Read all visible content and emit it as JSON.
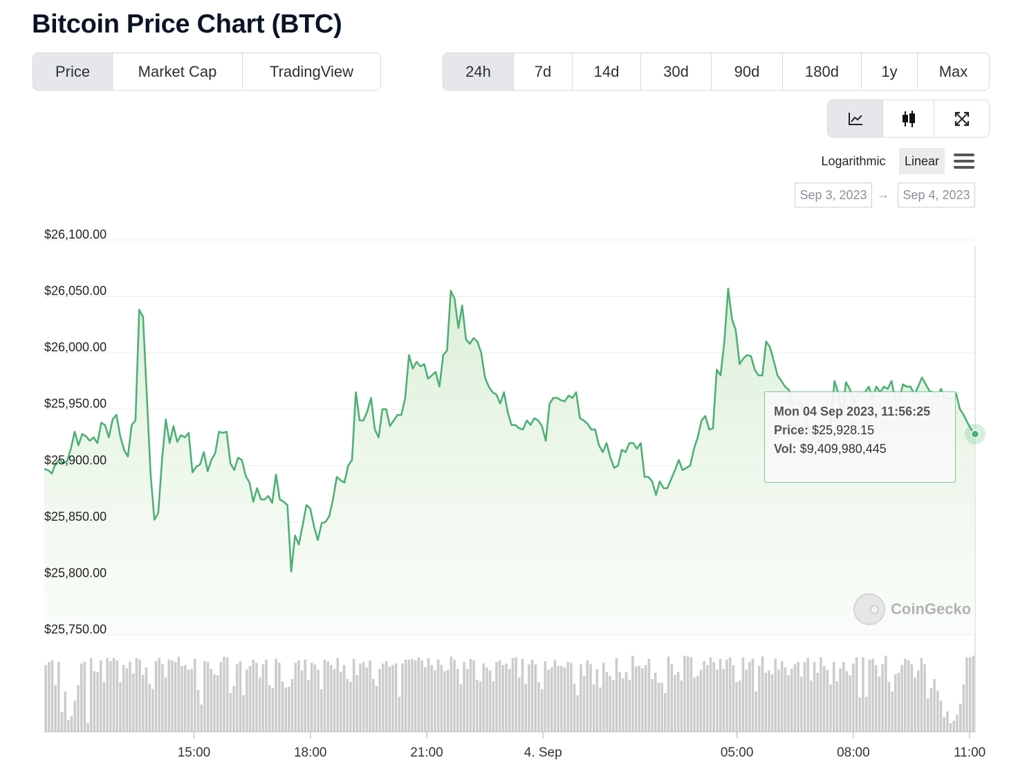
{
  "page": {
    "title": "Bitcoin Price Chart (BTC)"
  },
  "view_tabs": [
    {
      "label": "Price",
      "active": true
    },
    {
      "label": "Market Cap",
      "active": false
    },
    {
      "label": "TradingView",
      "active": false
    }
  ],
  "range_tabs": [
    {
      "label": "24h",
      "active": true
    },
    {
      "label": "7d",
      "active": false
    },
    {
      "label": "14d",
      "active": false
    },
    {
      "label": "30d",
      "active": false
    },
    {
      "label": "90d",
      "active": false
    },
    {
      "label": "180d",
      "active": false
    },
    {
      "label": "1y",
      "active": false
    },
    {
      "label": "Max",
      "active": false
    }
  ],
  "chart_type_buttons": [
    {
      "icon": "line-chart-icon",
      "active": true
    },
    {
      "icon": "candlestick-icon",
      "active": false
    },
    {
      "icon": "fullscreen-icon",
      "active": false
    }
  ],
  "scale": {
    "logarithmic": "Logarithmic",
    "linear": "Linear",
    "selected": "Linear"
  },
  "date_range": {
    "from": "Sep 3, 2023",
    "arrow": "→",
    "to": "Sep 4, 2023"
  },
  "tooltip": {
    "date": "Mon 04 Sep 2023, 11:56:25",
    "price_label": "Price:",
    "price_value": "$25,928.15",
    "vol_label": "Vol:",
    "vol_value": "$9,409,980,445"
  },
  "credit": {
    "name": "CoinGecko",
    "icon": "coingecko-logo-icon"
  },
  "colors": {
    "line": "#4cb074",
    "fill": "#e6f4e4",
    "volume": "#cccccc",
    "grid": "#ececec",
    "tooltip_border": "#7cc99a"
  },
  "chart_data": {
    "type": "area",
    "title": "",
    "xlabel": "",
    "ylabel": "",
    "ylim": [
      25750,
      26100
    ],
    "y_ticks": [
      25750,
      25800,
      25850,
      25900,
      25950,
      26000,
      26050,
      26100
    ],
    "y_tick_labels": [
      "$25,750.00",
      "$25,800.00",
      "$25,850.00",
      "$25,900.00",
      "$25,950.00",
      "$26,000.00",
      "$26,050.00",
      "$26,100.00"
    ],
    "x_range_hours": [
      -0.86,
      23.14
    ],
    "x_ticks": [
      {
        "hour": 3,
        "label": "15:00"
      },
      {
        "hour": 6,
        "label": "18:00"
      },
      {
        "hour": 9,
        "label": "21:00"
      },
      {
        "hour": 12,
        "label": "4. Sep"
      },
      {
        "hour": 17,
        "label": "05:00"
      },
      {
        "hour": 20,
        "label": "08:00"
      },
      {
        "hour": 23,
        "label": "11:00"
      }
    ],
    "grid": true,
    "legend": "none",
    "series": [
      {
        "values": [
          25897,
          25896,
          25893,
          25902,
          25905,
          25902,
          25904,
          25915,
          25930,
          25918,
          25928,
          25926,
          25922,
          25925,
          25920,
          25938,
          25936,
          25925,
          25941,
          25945,
          25926,
          25914,
          25908,
          25936,
          25940,
          26038,
          26032,
          25962,
          25892,
          25852,
          25858,
          25905,
          25941,
          25920,
          25935,
          25921,
          25927,
          25925,
          25929,
          25894,
          25899,
          25901,
          25912,
          25895,
          25905,
          25911,
          25930,
          25929,
          25930,
          25902,
          25896,
          25907,
          25905,
          25891,
          25885,
          25868,
          25880,
          25870,
          25870,
          25873,
          25867,
          25892,
          25870,
          25868,
          25865,
          25806,
          25838,
          25830,
          25847,
          25865,
          25862,
          25846,
          25834,
          25849,
          25850,
          25855,
          25870,
          25890,
          25887,
          25885,
          25900,
          25905,
          25965,
          25940,
          25940,
          25948,
          25960,
          25932,
          25925,
          25950,
          25950,
          25935,
          25940,
          25945,
          25945,
          25960,
          25998,
          25986,
          25992,
          25988,
          25990,
          25977,
          25980,
          25983,
          25970,
          25998,
          26002,
          26055,
          26048,
          26022,
          26042,
          26012,
          26008,
          26013,
          26010,
          26000,
          25978,
          25970,
          25965,
          25963,
          25955,
          25965,
          25947,
          25936,
          25936,
          25933,
          25932,
          25940,
          25936,
          25942,
          25940,
          25935,
          25922,
          25955,
          25960,
          25960,
          25958,
          25957,
          25962,
          25960,
          25965,
          25942,
          25940,
          25937,
          25932,
          25932,
          25918,
          25912,
          25920,
          25907,
          25898,
          25900,
          25914,
          25912,
          25920,
          25920,
          25915,
          25920,
          25890,
          25890,
          25886,
          25874,
          25886,
          25880,
          25880,
          25888,
          25896,
          25905,
          25896,
          25898,
          25900,
          25915,
          25925,
          25940,
          25944,
          25932,
          25933,
          25985,
          25980,
          26010,
          26057,
          26030,
          26020,
          25990,
          25995,
          25998,
          25997,
          25985,
          25980,
          25980,
          26010,
          26005,
          25993,
          25980,
          25975,
          25970,
          25967,
          25954,
          25955,
          25956,
          25950,
          25935,
          25927,
          25922,
          25920,
          25930,
          25928,
          25940,
          25975,
          25964,
          25944,
          25974,
          25968,
          25956,
          25962,
          25965,
          25965,
          25970,
          25960,
          25970,
          25965,
          25970,
          25968,
          25975,
          25958,
          25958,
          25972,
          25970,
          25970,
          25963,
          25970,
          25978,
          25972,
          25966,
          25965,
          25960,
          25968,
          25960,
          25960,
          25958,
          25964,
          25950,
          25945,
          25938,
          25932,
          25928
        ]
      }
    ],
    "volume": {
      "ylim": [
        0,
        1
      ],
      "values": [
        0.86,
        0.9,
        0.92,
        0.6,
        0.9,
        0.25,
        0.52,
        0.15,
        0.2,
        0.4,
        0.6,
        0.88,
        0.9,
        0.11,
        0.95,
        0.78,
        0.77,
        0.92,
        0.64,
        0.95,
        0.91,
        0.95,
        0.92,
        0.64,
        0.86,
        0.82,
        0.9,
        0.75,
        0.95,
        0.93,
        0.73,
        0.83,
        0.62,
        0.55,
        0.91,
        0.95,
        0.87,
        0.7,
        0.93,
        0.92,
        0.9,
        0.97,
        0.85,
        0.86,
        0.8,
        0.81,
        0.94,
        0.54,
        0.35,
        0.91,
        0.9,
        0.81,
        0.74,
        0.73,
        0.9,
        0.97,
        0.96,
        0.5,
        0.59,
        0.87,
        0.91,
        0.47,
        0.8,
        0.85,
        0.93,
        0.89,
        0.7,
        0.87,
        0.93,
        0.6,
        0.56,
        0.94,
        0.89,
        0.65,
        0.57,
        0.58,
        0.68,
        0.89,
        0.92,
        0.79,
        0.93,
        0.67,
        0.89,
        0.87,
        0.8,
        0.55,
        0.93,
        0.91,
        0.86,
        0.81,
        0.95,
        0.77,
        0.86,
        0.68,
        0.64,
        0.94,
        0.73,
        0.88,
        0.9,
        0.83,
        0.92,
        0.68,
        0.59,
        0.81,
        0.88,
        0.91,
        0.84,
        0.86,
        0.88,
        0.45,
        0.88,
        0.93,
        0.93,
        0.94,
        0.92,
        0.96,
        0.92,
        0.83,
        0.95,
        0.86,
        0.79,
        0.93,
        0.86,
        0.78,
        0.8,
        0.97,
        0.93,
        0.81,
        0.61,
        0.9,
        0.81,
        0.94,
        0.92,
        0.67,
        0.65,
        0.88,
        0.83,
        0.79,
        0.65,
        0.9,
        0.92,
        0.86,
        0.88,
        0.81,
        0.95,
        0.96,
        0.7,
        0.94,
        0.62,
        0.87,
        0.93,
        0.87,
        0.64,
        0.55,
        0.91,
        0.8,
        0.83,
        0.93,
        0.85,
        0.85,
        0.83,
        0.9,
        0.89,
        0.62,
        0.47,
        0.87,
        0.72,
        0.92,
        0.87,
        0.61,
        0.81,
        0.57,
        0.89,
        0.77,
        0.72,
        0.67,
        0.95,
        0.77,
        0.69,
        0.77,
        0.67,
        0.98,
        0.84,
        0.85,
        0.82,
        0.86,
        0.94,
        0.68,
        0.76,
        0.63,
        0.63,
        0.5,
        0.97,
        0.87,
        0.73,
        0.77,
        0.66,
        0.98,
        0.97,
        0.96,
        0.7,
        0.72,
        0.8,
        0.91,
        0.86,
        0.96,
        0.9,
        0.8,
        0.94,
        0.81,
        0.93,
        0.96,
        0.86,
        0.64,
        0.66,
        0.96,
        0.8,
        0.9,
        0.94,
        0.52,
        0.85,
        0.97,
        0.76,
        0.79,
        0.74,
        0.94,
        0.8,
        0.91,
        0.83,
        0.73,
        0.81,
        0.87,
        0.9,
        0.71,
        0.9,
        0.95,
        0.66,
        0.9,
        0.76,
        0.96,
        0.85,
        0.8,
        0.61,
        0.9,
        0.65,
        0.82,
        0.9,
        0.78,
        0.73,
        0.88,
        0.96,
        0.44,
        0.96,
        0.45,
        0.93,
        0.94,
        0.86,
        0.71,
        0.87,
        0.98,
        0.64,
        0.52,
        0.74,
        0.76,
        0.86,
        0.94,
        0.92,
        0.87,
        0.7,
        0.79,
        0.95,
        0.87,
        0.43,
        0.56,
        0.68,
        0.53,
        0.4,
        0.19,
        0.26,
        0.11,
        0.14,
        0.22,
        0.36,
        0.61,
        0.96,
        0.96,
        0.98
      ]
    },
    "highlight": {
      "index": 254
    }
  }
}
